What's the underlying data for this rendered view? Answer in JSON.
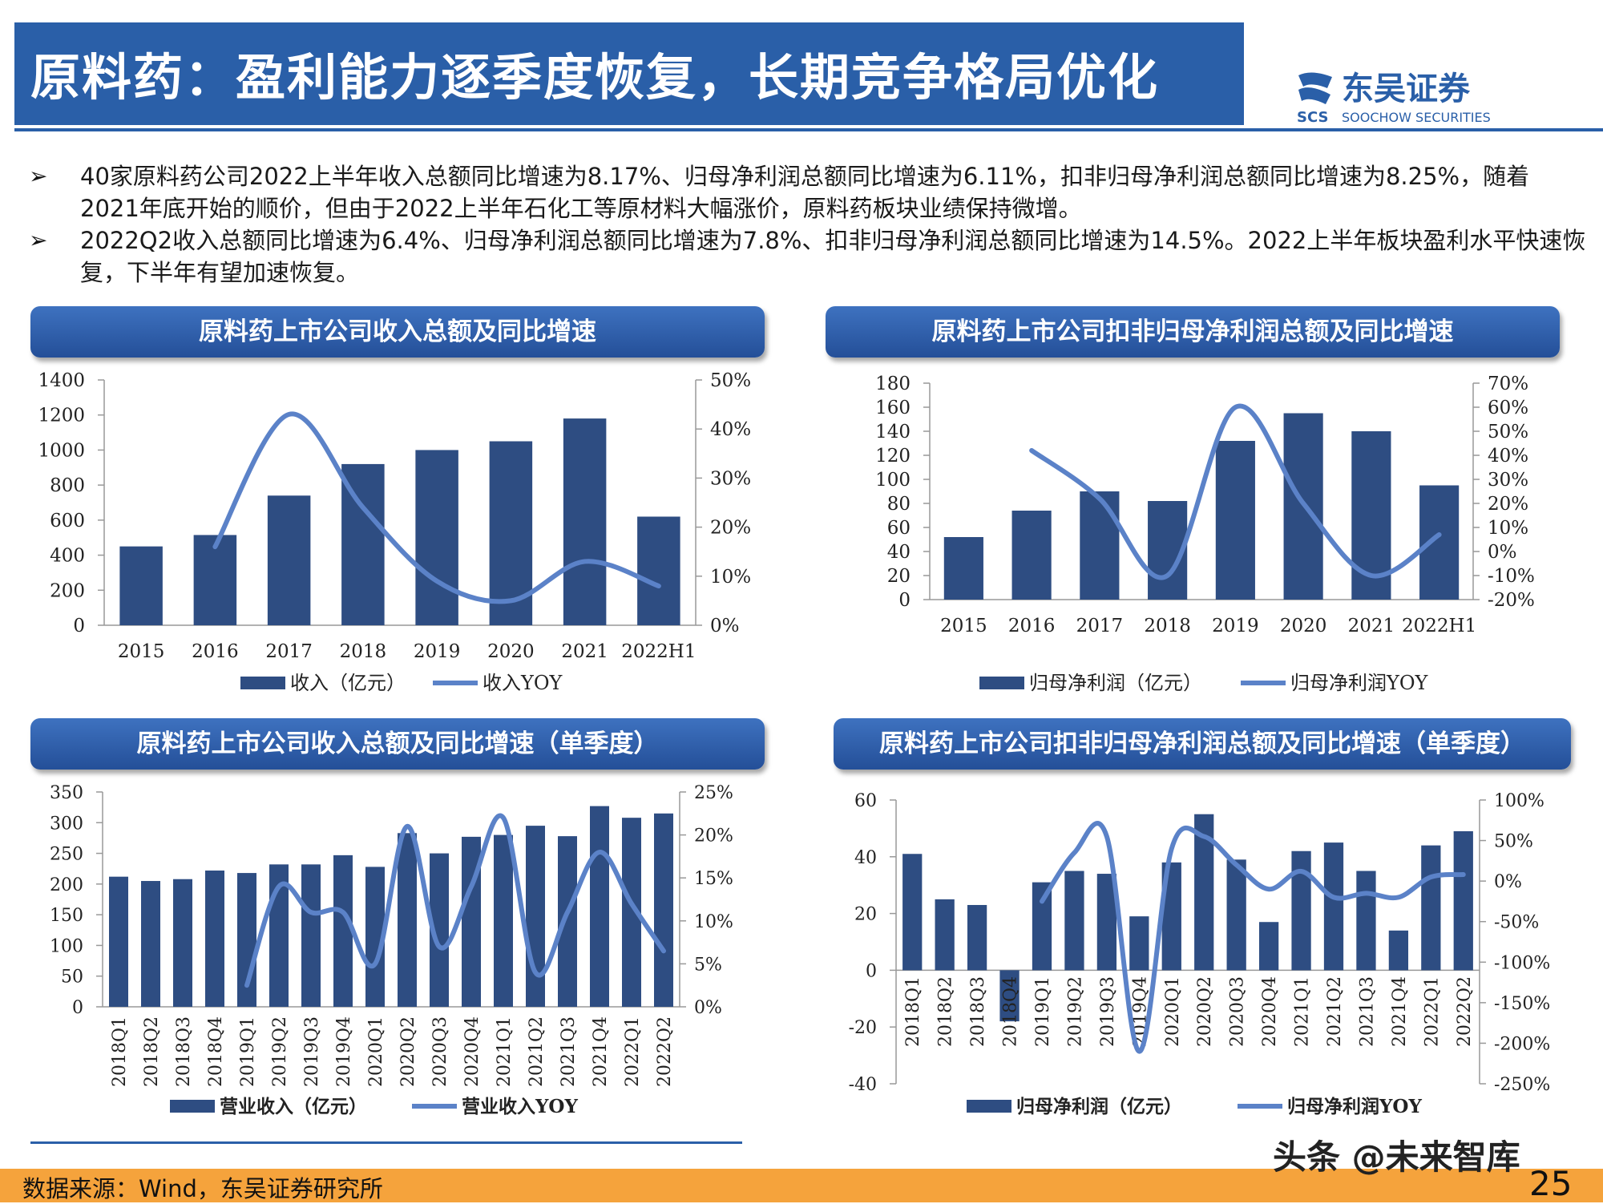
{
  "title": "原料药：盈利能力逐季度恢复，长期竞争格局优化",
  "logo": {
    "cn": "东吴证券",
    "en": "SOOCHOW SECURITIES",
    "mark": "SCS"
  },
  "bullets": [
    "40家原料药公司2022上半年收入总额同比增速为8.17%、归母净利润总额同比增速为6.11%，扣非归母净利润总额同比增速为8.25%，随着2021年底开始的顺价，但由于2022上半年石化工等原材料大幅涨价，原料药板块业绩保持微增。",
    "2022Q2收入总额同比增速为6.4%、归母净利润总额同比增速为7.8%、扣非归母净利润总额同比增速为14.5%。2022上半年板块盈利水平快速恢复，下半年有望加速恢复。"
  ],
  "panels": {
    "p1": "原料药上市公司收入总额及同比增速",
    "p2": "原料药上市公司扣非归母净利润总额及同比增速",
    "p3": "原料药上市公司收入总额及同比增速（单季度）",
    "p4": "原料药上市公司扣非归母净利润总额及同比增速（单季度）"
  },
  "chart_data": [
    {
      "type": "bar",
      "categories": [
        "2015",
        "2016",
        "2017",
        "2018",
        "2019",
        "2020",
        "2021",
        "2022H1"
      ],
      "series": [
        {
          "name": "收入（亿元）",
          "type": "bar",
          "axis": "left",
          "values": [
            450,
            515,
            740,
            920,
            1000,
            1050,
            1180,
            620
          ]
        },
        {
          "name": "收入YOY",
          "type": "line",
          "axis": "right",
          "values": [
            null,
            16,
            43,
            24,
            9,
            5,
            13,
            8
          ]
        }
      ],
      "ylim": [
        0,
        1400
      ],
      "y_ticks": [
        "0",
        "200",
        "400",
        "600",
        "800",
        "1000",
        "1200",
        "1400"
      ],
      "y2lim": [
        0,
        50
      ],
      "y2_ticks": [
        "0%",
        "10%",
        "20%",
        "30%",
        "40%",
        "50%"
      ]
    },
    {
      "type": "bar",
      "categories": [
        "2015",
        "2016",
        "2017",
        "2018",
        "2019",
        "2020",
        "2021",
        "2022H1"
      ],
      "series": [
        {
          "name": "归母净利润（亿元）",
          "type": "bar",
          "axis": "left",
          "values": [
            52,
            74,
            90,
            82,
            132,
            155,
            140,
            95
          ]
        },
        {
          "name": "归母净利润YOY",
          "type": "line",
          "axis": "right",
          "values": [
            null,
            42,
            22,
            -10,
            60,
            20,
            -10,
            7
          ]
        }
      ],
      "ylim": [
        0,
        180
      ],
      "y_ticks": [
        "0",
        "20",
        "40",
        "60",
        "80",
        "100",
        "120",
        "140",
        "160",
        "180"
      ],
      "y2lim": [
        -20,
        70
      ],
      "y2_ticks": [
        "-20%",
        "-10%",
        "0%",
        "10%",
        "20%",
        "30%",
        "40%",
        "50%",
        "60%",
        "70%"
      ]
    },
    {
      "type": "bar",
      "categories": [
        "2018Q1",
        "2018Q2",
        "2018Q3",
        "2018Q4",
        "2019Q1",
        "2019Q2",
        "2019Q3",
        "2019Q4",
        "2020Q1",
        "2020Q2",
        "2020Q3",
        "2020Q4",
        "2021Q1",
        "2021Q2",
        "2021Q3",
        "2021Q4",
        "2022Q1",
        "2022Q2"
      ],
      "series": [
        {
          "name": "营业收入（亿元）",
          "type": "bar",
          "axis": "left",
          "values": [
            212,
            205,
            208,
            222,
            218,
            232,
            232,
            247,
            228,
            283,
            250,
            277,
            280,
            295,
            278,
            327,
            308,
            315
          ]
        },
        {
          "name": "营业收入YOY",
          "type": "line",
          "axis": "right",
          "values": [
            null,
            null,
            null,
            null,
            2.5,
            14,
            11,
            11,
            5,
            21,
            7,
            14,
            22,
            4,
            11,
            18,
            12,
            6.5
          ]
        }
      ],
      "ylim": [
        0,
        350
      ],
      "y_ticks": [
        "0",
        "50",
        "100",
        "150",
        "200",
        "250",
        "300",
        "350"
      ],
      "y2lim": [
        0,
        25
      ],
      "y2_ticks": [
        "0%",
        "5%",
        "10%",
        "15%",
        "20%",
        "25%"
      ]
    },
    {
      "type": "bar",
      "categories": [
        "2018Q1",
        "2018Q2",
        "2018Q3",
        "2018Q4",
        "2019Q1",
        "2019Q2",
        "2019Q3",
        "2019Q4",
        "2020Q1",
        "2020Q2",
        "2020Q3",
        "2020Q4",
        "2021Q1",
        "2021Q2",
        "2021Q3",
        "2021Q4",
        "2022Q1",
        "2022Q2"
      ],
      "series": [
        {
          "name": "归母净利润（亿元）",
          "type": "bar",
          "axis": "left",
          "values": [
            41,
            25,
            23,
            -18,
            31,
            35,
            34,
            19,
            38,
            55,
            39,
            17,
            42,
            45,
            35,
            14,
            44,
            49
          ]
        },
        {
          "name": "归母净利润YOY",
          "type": "line",
          "axis": "right",
          "values": [
            null,
            null,
            null,
            null,
            -25,
            35,
            55,
            -210,
            40,
            55,
            20,
            -10,
            12,
            -20,
            -15,
            -20,
            5,
            8
          ]
        }
      ],
      "ylim": [
        -40,
        60
      ],
      "y_ticks": [
        "-40",
        "-20",
        "0",
        "20",
        "40",
        "60"
      ],
      "y2lim": [
        -250,
        100
      ],
      "y2_ticks": [
        "-250%",
        "-200%",
        "-150%",
        "-100%",
        "-50%",
        "0%",
        "50%",
        "100%"
      ]
    }
  ],
  "footer": {
    "source": "数据来源：Wind，东吴证券研究所",
    "page": "25",
    "watermark": "头条 @未来智库"
  },
  "colors": {
    "bar": "#2e4d82",
    "line": "#5b82c8",
    "accent": "#2a5fa8",
    "footer": "#f5a33c"
  }
}
